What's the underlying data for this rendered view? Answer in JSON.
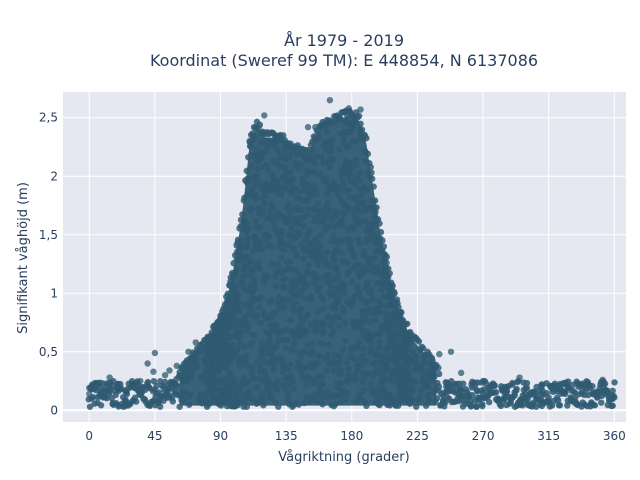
{
  "chart_data": {
    "type": "scatter",
    "title": "År 1979 - 2019",
    "subtitle": "Koordinat (Sweref 99 TM): E 448854, N 6137086",
    "xlabel": "Vågriktning (grader)",
    "ylabel": "Signifikant våghöjd (m)",
    "xlim": [
      -18,
      368
    ],
    "ylim": [
      -0.1,
      2.72
    ],
    "xticks": [
      0,
      45,
      90,
      135,
      180,
      225,
      270,
      315,
      360
    ],
    "xtick_labels": [
      "0",
      "45",
      "90",
      "135",
      "180",
      "225",
      "270",
      "315",
      "360"
    ],
    "yticks": [
      0,
      0.5,
      1,
      1.5,
      2,
      2.5
    ],
    "ytick_labels": [
      "0",
      "0,5",
      "1",
      "1,5",
      "2",
      "2,5"
    ],
    "grid": true,
    "colors": {
      "marker": "#2f5a72",
      "plot_bg": "#e5e8f0",
      "grid": "#ffffff",
      "text": "#2a3f5f"
    },
    "envelope": {
      "description_of_max_height_by_direction": "upper edge of the dense point cloud",
      "x": [
        60,
        70,
        80,
        90,
        95,
        100,
        105,
        110,
        115,
        120,
        130,
        140,
        150,
        155,
        160,
        170,
        180,
        185,
        190,
        200,
        210,
        220,
        230,
        240
      ],
      "y": [
        0.3,
        0.45,
        0.6,
        0.8,
        1.0,
        1.3,
        1.7,
        2.3,
        2.45,
        2.35,
        2.35,
        2.25,
        2.2,
        2.35,
        2.45,
        2.5,
        2.55,
        2.5,
        2.3,
        1.5,
        0.95,
        0.65,
        0.5,
        0.35
      ]
    },
    "outliers": [
      {
        "x": 0,
        "y": 0.14
      },
      {
        "x": 2,
        "y": 0.22
      },
      {
        "x": 8,
        "y": 0.15
      },
      {
        "x": 12,
        "y": 0.2
      },
      {
        "x": 14,
        "y": 0.28
      },
      {
        "x": 20,
        "y": 0.18
      },
      {
        "x": 25,
        "y": 0.16
      },
      {
        "x": 30,
        "y": 0.22
      },
      {
        "x": 35,
        "y": 0.25
      },
      {
        "x": 40,
        "y": 0.4
      },
      {
        "x": 44,
        "y": 0.33
      },
      {
        "x": 45,
        "y": 0.49
      },
      {
        "x": 50,
        "y": 0.21
      },
      {
        "x": 52,
        "y": 0.3
      },
      {
        "x": 55,
        "y": 0.34
      },
      {
        "x": 60,
        "y": 0.38
      },
      {
        "x": 68,
        "y": 0.5
      },
      {
        "x": 70,
        "y": 0.44
      },
      {
        "x": 73,
        "y": 0.58
      },
      {
        "x": 150,
        "y": 2.42
      },
      {
        "x": 155,
        "y": 2.42
      },
      {
        "x": 165,
        "y": 2.65
      },
      {
        "x": 120,
        "y": 2.52
      },
      {
        "x": 178,
        "y": 2.58
      },
      {
        "x": 186,
        "y": 2.57
      },
      {
        "x": 240,
        "y": 0.48
      },
      {
        "x": 248,
        "y": 0.5
      },
      {
        "x": 255,
        "y": 0.32
      },
      {
        "x": 262,
        "y": 0.22
      },
      {
        "x": 270,
        "y": 0.25
      },
      {
        "x": 275,
        "y": 0.2
      },
      {
        "x": 285,
        "y": 0.2
      },
      {
        "x": 295,
        "y": 0.28
      },
      {
        "x": 300,
        "y": 0.19
      },
      {
        "x": 305,
        "y": 0.16
      },
      {
        "x": 310,
        "y": 0.2
      },
      {
        "x": 318,
        "y": 0.18
      },
      {
        "x": 325,
        "y": 0.15
      },
      {
        "x": 330,
        "y": 0.17
      },
      {
        "x": 335,
        "y": 0.23
      },
      {
        "x": 340,
        "y": 0.2
      },
      {
        "x": 345,
        "y": 0.14
      },
      {
        "x": 352,
        "y": 0.26
      },
      {
        "x": 355,
        "y": 0.15
      },
      {
        "x": 358,
        "y": 0.13
      }
    ]
  }
}
